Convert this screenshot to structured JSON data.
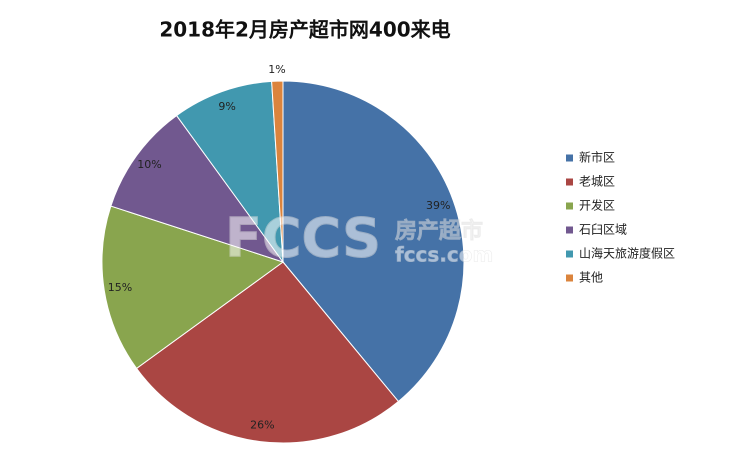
{
  "chart_data": {
    "type": "pie",
    "title": "2018年2月房产超市网400来电",
    "categories": [
      "新市区",
      "老城区",
      "开发区",
      "石臼区域",
      "山海天旅游度假区",
      "其他"
    ],
    "values": [
      39,
      26,
      15,
      10,
      9,
      1
    ],
    "value_labels": [
      "39%",
      "26%",
      "15%",
      "10%",
      "9%",
      "1%"
    ],
    "colors": [
      "#4572a7",
      "#aa4643",
      "#89a54e",
      "#71588f",
      "#4198af",
      "#db843d"
    ],
    "legend": "right",
    "watermark": [
      "FCCS",
      "房产超市",
      "fccs.com"
    ]
  }
}
